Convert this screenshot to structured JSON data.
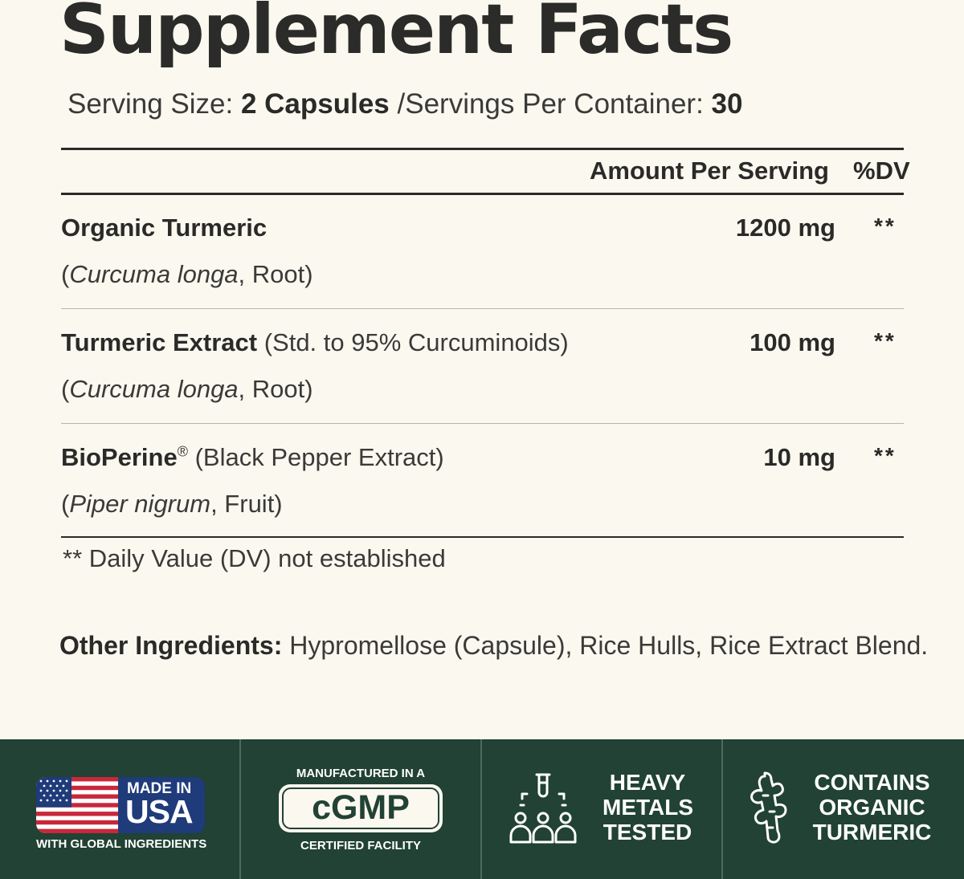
{
  "title": "Supplement Facts",
  "serving": {
    "size_label": "Serving Size:",
    "size_value": "2 Capsules",
    "per_container_label": "/Servings Per Container:",
    "per_container_value": "30"
  },
  "table": {
    "header_amount": "Amount Per Serving",
    "header_dv": "%DV",
    "rows": [
      {
        "name": "Organic Turmeric",
        "name_suffix": "",
        "source_latin": "Curcuma longa",
        "source_part": ", Root)",
        "amount": "1200 mg",
        "dv": "**"
      },
      {
        "name": "Turmeric Extract",
        "name_suffix": " (Std. to 95% Curcuminoids)",
        "source_latin": "Curcuma longa",
        "source_part": ", Root)",
        "amount": "100 mg",
        "dv": "**"
      },
      {
        "name": "BioPerine",
        "name_mark": "®",
        "name_suffix": " (Black Pepper Extract)",
        "source_latin": "Piper nigrum",
        "source_part": ", Fruit)",
        "amount": "10 mg",
        "dv": "**"
      }
    ]
  },
  "footnote": "** Daily Value (DV) not established",
  "other_ingredients": {
    "label": "Other Ingredients:",
    "text": " Hypromellose (Capsule), Rice Hulls, Rice Extract Blend."
  },
  "badges": {
    "usa": {
      "made_in": "MADE IN",
      "usa": "USA",
      "subtitle": "WITH GLOBAL INGREDIENTS",
      "icon": "us-flag-icon"
    },
    "cgmp": {
      "top": "MANUFACTURED IN A",
      "mark": "cGMP",
      "bottom": "CERTIFIED FACILITY"
    },
    "heavy_metals": {
      "line1": "HEAVY",
      "line2": "METALS",
      "line3": "TESTED",
      "icon": "test-tube-people-icon"
    },
    "organic": {
      "line1": "CONTAINS",
      "line2": "ORGANIC",
      "line3": "TURMERIC",
      "icon": "turmeric-root-icon"
    }
  },
  "colors": {
    "background": "#fbf8ef",
    "text": "#2a2a28",
    "band": "#214234",
    "flag_blue": "#1f3b7a",
    "flag_red": "#c8283a"
  }
}
